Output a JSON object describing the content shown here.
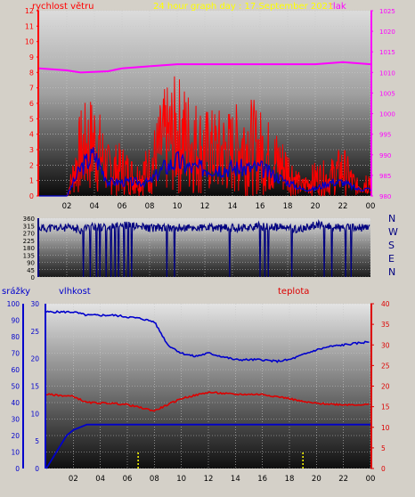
{
  "title": "24 hour graph day : 17.September 2021",
  "colors": {
    "title": "#ffff00",
    "wind": "#ff0000",
    "gust": "#ff0000",
    "pressure": "#ff00ff",
    "humidity": "#0000cc",
    "temp": "#dd0000",
    "rain": "#ff0000",
    "dir": "#000080"
  },
  "chart_data": [
    {
      "type": "line",
      "title": "24 hour graph day : 17.September 2021",
      "x_ticks": [
        "02",
        "04",
        "06",
        "08",
        "10",
        "12",
        "14",
        "16",
        "18",
        "20",
        "22",
        "00"
      ],
      "left_axis": {
        "label": "rychlost větru",
        "ticks": [
          "0",
          "1",
          "2",
          "3",
          "4",
          "5",
          "6",
          "7",
          "8",
          "9",
          "10",
          "11",
          "12"
        ],
        "ylim": [
          0,
          12
        ]
      },
      "right_axis": {
        "label": "tlak",
        "ticks": [
          "980",
          "985",
          "990",
          "995",
          "1000",
          "1005",
          "1010",
          "1015",
          "1020",
          "1025"
        ],
        "ylim": [
          980,
          1025
        ]
      },
      "series": [
        {
          "name": "tlak",
          "axis": "right",
          "x": [
            0,
            2,
            3,
            5,
            6,
            8,
            10,
            12,
            16,
            20,
            22,
            24
          ],
          "values": [
            1011,
            1010.5,
            1010,
            1010.3,
            1011,
            1011.5,
            1012,
            1012,
            1012,
            1012,
            1012.5,
            1012
          ]
        },
        {
          "name": "rychlost větru",
          "axis": "left",
          "x": [
            0,
            2,
            3,
            4,
            5,
            6,
            7,
            8,
            9,
            10,
            11,
            12,
            13,
            14,
            15,
            16,
            17,
            18,
            19,
            20,
            21,
            22,
            23,
            24
          ],
          "values": [
            0,
            0,
            5,
            6,
            3,
            3,
            2,
            3,
            6,
            7,
            6,
            5,
            5,
            5,
            6,
            5,
            4,
            3,
            1,
            2,
            2,
            3,
            1,
            2
          ]
        },
        {
          "name": "průměr",
          "axis": "left",
          "x": [
            0,
            2,
            3,
            4,
            5,
            6,
            7,
            8,
            9,
            10,
            11,
            12,
            13,
            14,
            15,
            16,
            17,
            18,
            19,
            20,
            21,
            22,
            23,
            24
          ],
          "values": [
            0,
            0,
            2,
            3,
            1,
            1,
            1,
            1,
            2,
            2.5,
            2,
            2,
            2,
            2,
            2,
            2,
            1.5,
            1,
            0.5,
            0.5,
            1,
            1,
            0.5,
            0.5
          ]
        }
      ]
    },
    {
      "type": "line",
      "x_ticks": [
        "02",
        "04",
        "06",
        "08",
        "10",
        "12",
        "14",
        "16",
        "18",
        "20",
        "22",
        "00"
      ],
      "ylim": [
        0,
        360
      ],
      "y_ticks": [
        "0",
        "45",
        "90",
        "135",
        "180",
        "225",
        "270",
        "315",
        "360"
      ],
      "right_labels": [
        "N",
        "W",
        "S",
        "E",
        "N"
      ],
      "series": [
        {
          "name": "směr větru",
          "x": [
            0,
            2,
            3,
            4,
            5,
            6,
            8,
            10,
            12,
            14,
            16,
            18,
            19,
            20,
            22,
            24
          ],
          "values": [
            300,
            300,
            290,
            310,
            300,
            320,
            300,
            300,
            300,
            300,
            310,
            300,
            290,
            320,
            300,
            300
          ]
        }
      ]
    },
    {
      "type": "line",
      "x_ticks": [
        "02",
        "04",
        "06",
        "08",
        "10",
        "12",
        "14",
        "16",
        "18",
        "20",
        "22",
        "00"
      ],
      "left_axis_1": {
        "label": "srážky",
        "ticks": [
          "0",
          "10",
          "20",
          "30",
          "40",
          "50",
          "60",
          "70",
          "80",
          "90",
          "100"
        ],
        "ylim": [
          0,
          100
        ]
      },
      "left_axis_2": {
        "label": "vlhkost",
        "ticks": [
          "0",
          "5",
          "10",
          "15",
          "20",
          "25",
          "30"
        ],
        "ylim": [
          0,
          30
        ]
      },
      "right_axis": {
        "label": "teplota",
        "ticks": [
          "0",
          "5",
          "10",
          "15",
          "20",
          "25",
          "30",
          "35",
          "40"
        ],
        "ylim": [
          0,
          40
        ]
      },
      "series": [
        {
          "name": "vlhkost",
          "axis": "left1",
          "x": [
            0,
            2,
            3,
            5,
            6,
            7,
            8,
            9,
            10,
            11,
            12,
            13,
            14,
            15,
            16,
            17,
            18,
            19,
            20,
            21,
            22,
            23,
            24
          ],
          "values": [
            95,
            95,
            93,
            93,
            92,
            91,
            89,
            75,
            70,
            68,
            70,
            68,
            66,
            66,
            66,
            65,
            66,
            69,
            72,
            74,
            75,
            76,
            77
          ]
        },
        {
          "name": "teplota",
          "axis": "right",
          "x": [
            0,
            2,
            3,
            5,
            6,
            8,
            9,
            10,
            12,
            14,
            16,
            18,
            19,
            20,
            22,
            24
          ],
          "values": [
            18,
            17.5,
            16,
            15.8,
            15.5,
            14,
            15.5,
            17,
            18.5,
            18,
            18,
            17,
            16.2,
            15.8,
            15.5,
            15.5
          ]
        },
        {
          "name": "srážky",
          "axis": "left2",
          "x": [
            0,
            0.5,
            1,
            1.5,
            2,
            3,
            24
          ],
          "values": [
            0,
            2,
            4,
            6,
            7,
            8,
            8
          ]
        }
      ]
    }
  ]
}
